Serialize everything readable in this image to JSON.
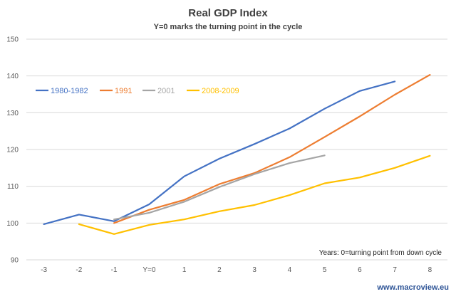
{
  "chart_data": {
    "type": "line",
    "title": "Real GDP Index",
    "subtitle": "Y=0 marks the turning point in the cycle",
    "x": [
      -3,
      -2,
      -1,
      0,
      1,
      2,
      3,
      4,
      5,
      6,
      7,
      8
    ],
    "x_tick_labels": [
      "-3",
      "-2",
      "-1",
      "Y=0",
      "1",
      "2",
      "3",
      "4",
      "5",
      "6",
      "7",
      "8"
    ],
    "ylim": [
      90,
      150
    ],
    "y_ticks": [
      90,
      100,
      110,
      120,
      130,
      140,
      150
    ],
    "grid": true,
    "legend_position": "top-left",
    "series": [
      {
        "name": "1980-1982",
        "color": "#4472c4",
        "values": [
          99.7,
          102.3,
          100.5,
          105.1,
          112.7,
          117.5,
          121.5,
          125.7,
          131.1,
          135.9,
          138.5,
          null
        ]
      },
      {
        "name": "1991",
        "color": "#ed7d31",
        "values": [
          null,
          null,
          100.0,
          103.6,
          106.3,
          110.6,
          113.6,
          117.9,
          123.4,
          129.0,
          134.9,
          140.3
        ]
      },
      {
        "name": "2001",
        "color": "#a5a5a5",
        "values": [
          null,
          null,
          101.0,
          102.8,
          105.8,
          109.8,
          113.3,
          116.3,
          118.4,
          null,
          null,
          null
        ]
      },
      {
        "name": "2008-2009",
        "color": "#ffc000",
        "values": [
          null,
          99.7,
          97.0,
          99.5,
          101.0,
          103.2,
          104.9,
          107.6,
          110.8,
          112.4,
          115.0,
          118.3
        ]
      }
    ],
    "annotation": "Years: 0=turning point from down cycle"
  },
  "footer": "www.macroview.eu"
}
